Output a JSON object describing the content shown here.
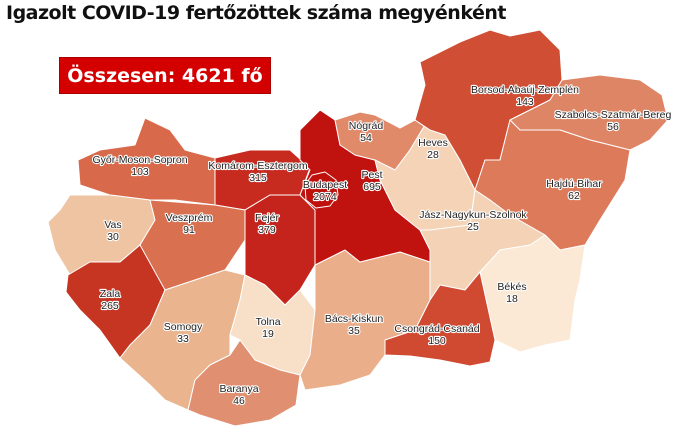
{
  "title": "Igazolt COVID-19 fertőzöttek száma megyénként",
  "total_label": "Összesen: 4621 fő",
  "total_color": "#d40000",
  "counties": [
    {
      "name": "Győr-Moson-Sopron",
      "value": "103",
      "color": "#d8694a"
    },
    {
      "name": "Komárom-Esztergom",
      "value": "315",
      "color": "#c72a1f"
    },
    {
      "name": "Vas",
      "value": "30",
      "color": "#efc4a2"
    },
    {
      "name": "Veszprém",
      "value": "91",
      "color": "#d97050"
    },
    {
      "name": "Zala",
      "value": "265",
      "color": "#c63422"
    },
    {
      "name": "Fejér",
      "value": "379",
      "color": "#c4241b"
    },
    {
      "name": "Somogy",
      "value": "33",
      "color": "#eab48e"
    },
    {
      "name": "Tolna",
      "value": "19",
      "color": "#f8e0c8"
    },
    {
      "name": "Baranya",
      "value": "46",
      "color": "#e09070"
    },
    {
      "name": "Bács-Kiskun",
      "value": "35",
      "color": "#eaaf8a"
    },
    {
      "name": "Pest",
      "value": "695",
      "color": "#c0120e"
    },
    {
      "name": "Budapest",
      "value": "2074",
      "color": "#bf100c"
    },
    {
      "name": "Nógrád",
      "value": "54",
      "color": "#e08a6a"
    },
    {
      "name": "Heves",
      "value": "28",
      "color": "#f4d3b6"
    },
    {
      "name": "Borsod-Abaúj-Zemplén",
      "value": "143",
      "color": "#cf4e34"
    },
    {
      "name": "Szabolcs-Szatmár-Bereg",
      "value": "56",
      "color": "#de8565"
    },
    {
      "name": "Hajdú-Bihar",
      "value": "62",
      "color": "#dd7a5a"
    },
    {
      "name": "Jász-Nagykun-Szolnok",
      "value": "25",
      "color": "#f3d2b6"
    },
    {
      "name": "Békés",
      "value": "18",
      "color": "#fbe9d6"
    },
    {
      "name": "Csongrád-Csanád",
      "value": "150",
      "color": "#d04a32"
    }
  ]
}
